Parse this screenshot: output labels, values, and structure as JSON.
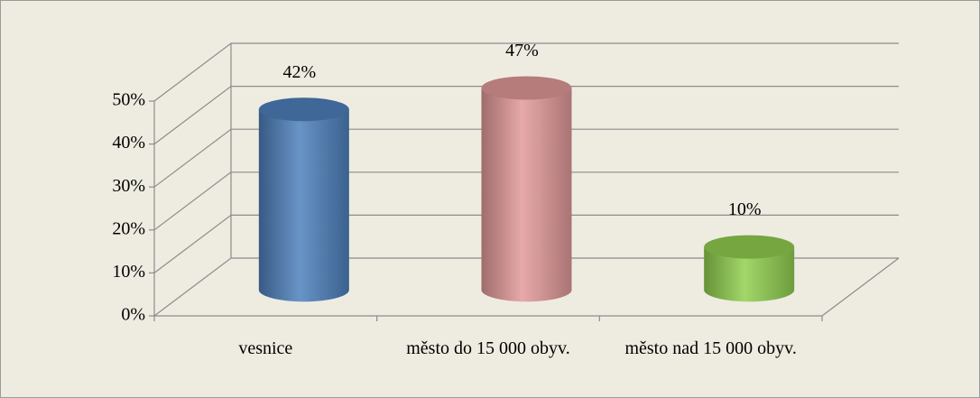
{
  "chart_data": {
    "type": "bar3d",
    "categories": [
      "vesnice",
      "město do 15 000 obyv.",
      "město nad 15 000 obyv."
    ],
    "values": [
      42,
      47,
      10
    ],
    "value_labels": [
      "42%",
      "47%",
      "10%"
    ],
    "colors": [
      "#4f81bd",
      "#e39a9a",
      "#92d050"
    ],
    "ylim": [
      0,
      50
    ],
    "yticks": [
      {
        "value": 0,
        "label": "0%"
      },
      {
        "value": 10,
        "label": "10%"
      },
      {
        "value": 20,
        "label": "20%"
      },
      {
        "value": 30,
        "label": "30%"
      },
      {
        "value": 40,
        "label": "40%"
      },
      {
        "value": 50,
        "label": "50%"
      }
    ],
    "grid": true
  }
}
